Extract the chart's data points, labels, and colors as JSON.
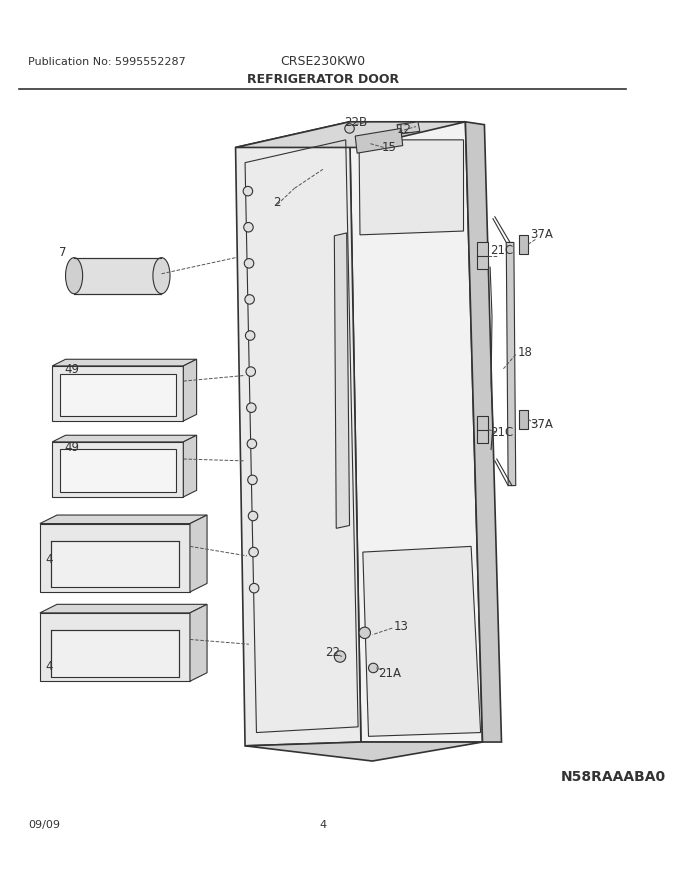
{
  "title_left": "Publication No: 5995552287",
  "title_center": "CRSE230KW0",
  "title_diagram": "REFRIGERATOR DOOR",
  "footer_left": "09/09",
  "footer_center": "4",
  "part_number": "N58RAAABA0",
  "bg_color": "#ffffff",
  "line_color": "#333333"
}
